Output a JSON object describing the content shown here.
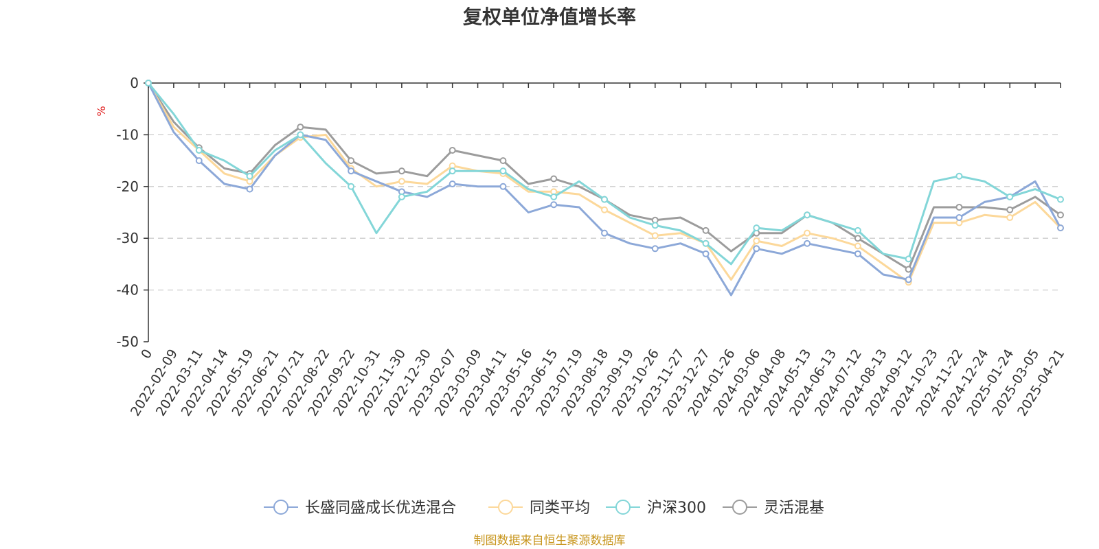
{
  "chart_data": {
    "type": "line",
    "title": "复权单位净值增长率",
    "ylabel": "%",
    "ylim": [
      -50,
      0
    ],
    "yticks": [
      "0",
      "-10",
      "-20",
      "-30",
      "-40",
      "-50"
    ],
    "grid": true,
    "legend_position": "bottom",
    "source": "制图数据来自恒生聚源数据库",
    "categories": [
      "0",
      "2022-02-09",
      "2022-03-11",
      "2022-04-14",
      "2022-05-19",
      "2022-06-21",
      "2022-07-21",
      "2022-08-22",
      "2022-09-22",
      "2022-10-31",
      "2022-11-30",
      "2022-12-30",
      "2023-02-07",
      "2023-03-09",
      "2023-04-11",
      "2023-05-16",
      "2023-06-15",
      "2023-07-19",
      "2023-08-18",
      "2023-09-19",
      "2023-10-26",
      "2023-11-27",
      "2023-12-27",
      "2024-01-26",
      "2024-03-06",
      "2024-04-08",
      "2024-05-13",
      "2024-06-13",
      "2024-07-12",
      "2024-08-13",
      "2024-09-12",
      "2024-10-23",
      "2024-11-22",
      "2024-12-24",
      "2025-01-24",
      "2025-03-05",
      "2025-04-21"
    ],
    "series": [
      {
        "name": "长盛同盛成长优选混合",
        "color": "#8ca8d8",
        "values": [
          0,
          -9.5,
          -15,
          -19.5,
          -20.5,
          -14,
          -10,
          -11,
          -17,
          -19,
          -21,
          -22,
          -19.5,
          -20,
          -20,
          -25,
          -23.5,
          -24,
          -29,
          -31,
          -32,
          -31,
          -33,
          -41,
          -32,
          -33,
          -31,
          -32,
          -33,
          -37,
          -38,
          -26,
          -26,
          -23,
          -22,
          -19,
          -28
        ]
      },
      {
        "name": "同类平均",
        "color": "#fcd89a",
        "values": [
          0,
          -8.5,
          -13,
          -17.5,
          -19,
          -14,
          -10.5,
          -10,
          -16.5,
          -20,
          -19,
          -19.5,
          -16,
          -17,
          -17.5,
          -21,
          -21,
          -21.5,
          -24.5,
          -27,
          -29.5,
          -29,
          -31,
          -38,
          -30.5,
          -31.5,
          -29,
          -30,
          -31.5,
          -35,
          -38.5,
          -27,
          -27,
          -25.5,
          -26,
          -23,
          -28
        ]
      },
      {
        "name": "沪深300",
        "color": "#83d6d8",
        "values": [
          0,
          -6,
          -13,
          -15,
          -18,
          -13,
          -10,
          -15.5,
          -20,
          -29,
          -22,
          -21,
          -17,
          -17,
          -17,
          -20.5,
          -22,
          -19,
          -22.5,
          -26,
          -27.5,
          -28.5,
          -31,
          -35,
          -28,
          -28.5,
          -25.5,
          -27,
          -28.5,
          -33,
          -34,
          -19,
          -18,
          -19,
          -22,
          -20.5,
          -22.5
        ]
      },
      {
        "name": "灵活混基",
        "color": "#9c9c9c",
        "values": [
          0,
          -7.5,
          -12.5,
          -16.5,
          -17.5,
          -12,
          -8.5,
          -9,
          -15,
          -17.5,
          -17,
          -18,
          -13,
          -14,
          -15,
          -19.5,
          -18.5,
          -20,
          -22.5,
          -25.5,
          -26.5,
          -26,
          -28.5,
          -32.5,
          -29,
          -29,
          -25.5,
          -27,
          -30,
          -33,
          -36,
          -24,
          -24,
          -24,
          -24.5,
          -22,
          -25.5
        ]
      }
    ]
  }
}
